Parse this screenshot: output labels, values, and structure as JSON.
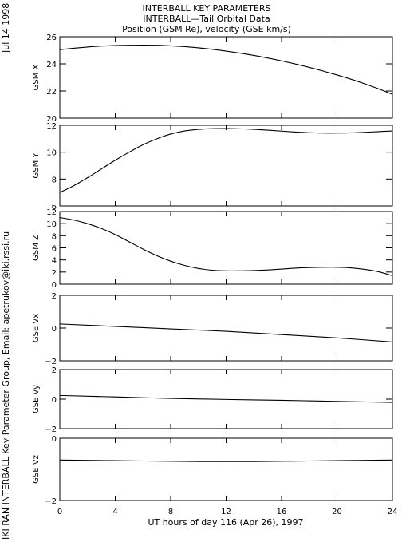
{
  "header": {
    "date_stamp": "Jul 14 1998",
    "credit": "IKI RAN INTERBALL Key Parameter Group, Email: apetrukov@iki.rssi.ru"
  },
  "chart_data": {
    "type": "line",
    "title": [
      "INTERBALL KEY PARAMETERS",
      "INTERBALL—Tail Orbital Data",
      "Position (GSM Re), velocity (GSE km/s)"
    ],
    "xlabel": "UT hours of day 116 (Apr 26), 1997",
    "xlim": [
      0,
      24
    ],
    "xticks": [
      0,
      4,
      8,
      12,
      16,
      20,
      24
    ],
    "xtick_labels": [
      "0",
      "4",
      "8",
      "12",
      "16",
      "20",
      "24"
    ],
    "grid": false,
    "legend": "none",
    "line_color": "#000000",
    "panels": [
      {
        "ylabel": "GSM X",
        "ylim": [
          20,
          26
        ],
        "yticks": [
          20,
          22,
          24,
          26
        ],
        "ytick_labels": [
          "20",
          "22",
          "24",
          "26"
        ],
        "x": [
          0,
          1,
          2,
          3,
          4,
          5,
          6,
          7,
          8,
          9,
          10,
          11,
          12,
          13,
          14,
          15,
          16,
          17,
          18,
          19,
          20,
          21,
          22,
          23,
          24
        ],
        "y": [
          25.05,
          25.15,
          25.24,
          25.31,
          25.35,
          25.37,
          25.38,
          25.37,
          25.33,
          25.27,
          25.18,
          25.07,
          24.94,
          24.79,
          24.62,
          24.43,
          24.22,
          23.99,
          23.74,
          23.47,
          23.18,
          22.87,
          22.53,
          22.16,
          21.75
        ]
      },
      {
        "ylabel": "GSM Y",
        "ylim": [
          6,
          12
        ],
        "yticks": [
          6,
          8,
          10,
          12
        ],
        "ytick_labels": [
          "6",
          "8",
          "10",
          "12"
        ],
        "x": [
          0,
          1,
          2,
          3,
          4,
          5,
          6,
          7,
          8,
          9,
          10,
          11,
          12,
          13,
          14,
          15,
          16,
          17,
          18,
          19,
          20,
          21,
          22,
          23,
          24
        ],
        "y": [
          7.0,
          7.5,
          8.1,
          8.75,
          9.4,
          10.0,
          10.55,
          11.0,
          11.35,
          11.58,
          11.7,
          11.75,
          11.76,
          11.74,
          11.7,
          11.64,
          11.57,
          11.5,
          11.45,
          11.42,
          11.42,
          11.44,
          11.48,
          11.53,
          11.58
        ]
      },
      {
        "ylabel": "GSM Z",
        "ylim": [
          0,
          12
        ],
        "yticks": [
          0,
          2,
          4,
          6,
          8,
          10,
          12
        ],
        "ytick_labels": [
          "0",
          "2",
          "4",
          "6",
          "8",
          "10",
          "12"
        ],
        "x": [
          0,
          1,
          2,
          3,
          4,
          5,
          6,
          7,
          8,
          9,
          10,
          11,
          12,
          13,
          14,
          15,
          16,
          17,
          18,
          19,
          20,
          21,
          22,
          23,
          24
        ],
        "y": [
          11.0,
          10.6,
          10.0,
          9.2,
          8.2,
          7.0,
          5.8,
          4.7,
          3.8,
          3.1,
          2.6,
          2.3,
          2.2,
          2.2,
          2.25,
          2.35,
          2.5,
          2.65,
          2.75,
          2.8,
          2.8,
          2.7,
          2.45,
          2.05,
          1.4
        ]
      },
      {
        "ylabel": "GSE Vx",
        "ylim": [
          -2,
          2
        ],
        "yticks": [
          -2,
          0,
          2
        ],
        "ytick_labels": [
          "−2",
          "0",
          "2"
        ],
        "x": [
          0,
          4,
          8,
          12,
          16,
          20,
          24
        ],
        "y": [
          0.25,
          0.1,
          -0.05,
          -0.2,
          -0.4,
          -0.6,
          -0.85
        ]
      },
      {
        "ylabel": "GSE Vy",
        "ylim": [
          -2,
          2
        ],
        "yticks": [
          -2,
          0,
          2
        ],
        "ytick_labels": [
          "−2",
          "0",
          "2"
        ],
        "x": [
          0,
          4,
          8,
          12,
          16,
          20,
          24
        ],
        "y": [
          0.25,
          0.15,
          0.05,
          -0.02,
          -0.08,
          -0.15,
          -0.22
        ]
      },
      {
        "ylabel": "GSE Vz",
        "ylim": [
          -2,
          0
        ],
        "yticks": [
          -2,
          0
        ],
        "ytick_labels": [
          "−2",
          "0"
        ],
        "x": [
          0,
          4,
          8,
          12,
          16,
          20,
          24
        ],
        "y": [
          -0.7,
          -0.72,
          -0.74,
          -0.75,
          -0.74,
          -0.72,
          -0.7
        ]
      }
    ]
  }
}
